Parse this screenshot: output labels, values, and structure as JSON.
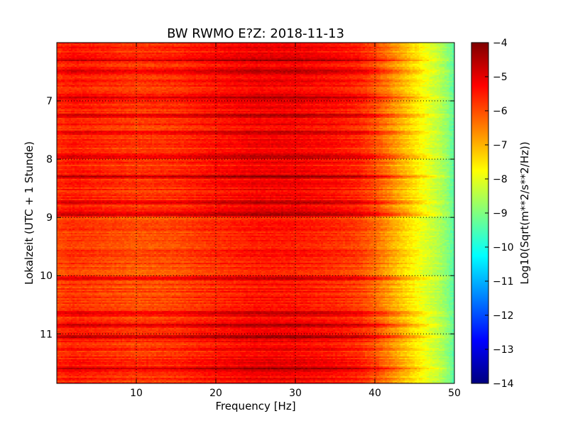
{
  "chart_data": {
    "type": "heatmap",
    "title": "BW RWMO E?Z: 2018-11-13",
    "xlabel": "Frequency [Hz]",
    "ylabel": "Lokalzeit (UTC + 1 Stunde)",
    "xlim": [
      0,
      50
    ],
    "ylim": [
      11.85,
      6.0
    ],
    "y_inverted": true,
    "x_ticks": [
      10,
      20,
      30,
      40,
      50
    ],
    "x_tick_labels": [
      "10",
      "20",
      "30",
      "40",
      "50"
    ],
    "y_ticks": [
      7,
      8,
      9,
      10,
      11
    ],
    "y_tick_labels": [
      "7",
      "8",
      "9",
      "10",
      "11"
    ],
    "grid": true,
    "colormap": "jet",
    "colorbar": {
      "label": "Log10(Sqrt(m**2/s**2/Hz))",
      "range": [
        -14,
        -4
      ],
      "ticks": [
        -4,
        -5,
        -6,
        -7,
        -8,
        -9,
        -10,
        -11,
        -12,
        -13,
        -14
      ],
      "tick_labels": [
        "−4",
        "−5",
        "−6",
        "−7",
        "−8",
        "−9",
        "−10",
        "−11",
        "−12",
        "−13",
        "−14"
      ]
    },
    "frequency_profile": {
      "frequency_hz": [
        0,
        2,
        5,
        10,
        15,
        20,
        25,
        30,
        35,
        38,
        40,
        42,
        44,
        45,
        46,
        47,
        48,
        49,
        50
      ],
      "typical_value": [
        -5.7,
        -5.5,
        -5.6,
        -5.8,
        -5.7,
        -5.4,
        -5.2,
        -5.2,
        -5.4,
        -5.6,
        -6.0,
        -6.6,
        -7.2,
        -7.5,
        -7.8,
        -8.1,
        -8.4,
        -8.8,
        -9.4
      ]
    },
    "high_energy_bands_hours": [
      6.3,
      6.5,
      6.95,
      7.25,
      7.55,
      7.95,
      8.3,
      8.75,
      8.95,
      10.05,
      10.65,
      10.85,
      11.05,
      11.6
    ],
    "high_energy_band_value": -4.6,
    "quiet_interval_hours": [
      9.0,
      10.6
    ],
    "quiet_interval_value": -5.9
  }
}
